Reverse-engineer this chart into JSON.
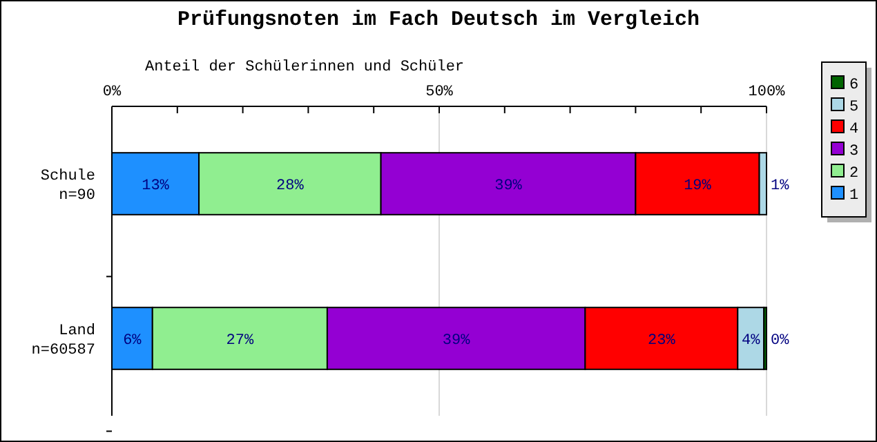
{
  "chart_data": {
    "type": "bar",
    "orientation": "horizontal",
    "stacked": true,
    "title": "Prüfungsnoten im Fach Deutsch im Vergleich",
    "xlabel": "Anteil der Schülerinnen und Schüler",
    "categories": [
      "Schule\nn=90",
      "Land\nn=60587"
    ],
    "series": [
      {
        "name": "1",
        "color": "#1e90ff",
        "values": [
          13.3,
          6.2
        ],
        "value_labels": [
          "13%",
          "6%"
        ]
      },
      {
        "name": "2",
        "color": "#90ee90",
        "values": [
          27.8,
          26.7
        ],
        "value_labels": [
          "28%",
          "27%"
        ]
      },
      {
        "name": "3",
        "color": "#9400d3",
        "values": [
          38.9,
          39.4
        ],
        "value_labels": [
          "39%",
          "39%"
        ]
      },
      {
        "name": "4",
        "color": "#ff0000",
        "values": [
          18.9,
          23.3
        ],
        "value_labels": [
          "19%",
          "23%"
        ]
      },
      {
        "name": "5",
        "color": "#add8e6",
        "values": [
          1.1,
          4.0
        ],
        "value_labels": [
          "1%",
          "4%"
        ]
      },
      {
        "name": "6",
        "color": "#006400",
        "values": [
          0,
          0.4
        ],
        "value_labels": [
          null,
          "0%"
        ]
      }
    ],
    "xlim": [
      0,
      100
    ],
    "xticks": [
      {
        "value": 0,
        "label": "0%"
      },
      {
        "value": 10,
        "label": null
      },
      {
        "value": 20,
        "label": null
      },
      {
        "value": 30,
        "label": null
      },
      {
        "value": 40,
        "label": null
      },
      {
        "value": 50,
        "label": "50%"
      },
      {
        "value": 60,
        "label": null
      },
      {
        "value": 70,
        "label": null
      },
      {
        "value": 80,
        "label": null
      },
      {
        "value": 90,
        "label": null
      },
      {
        "value": 100,
        "label": "100%"
      }
    ],
    "grid": "x",
    "legend": "right"
  }
}
